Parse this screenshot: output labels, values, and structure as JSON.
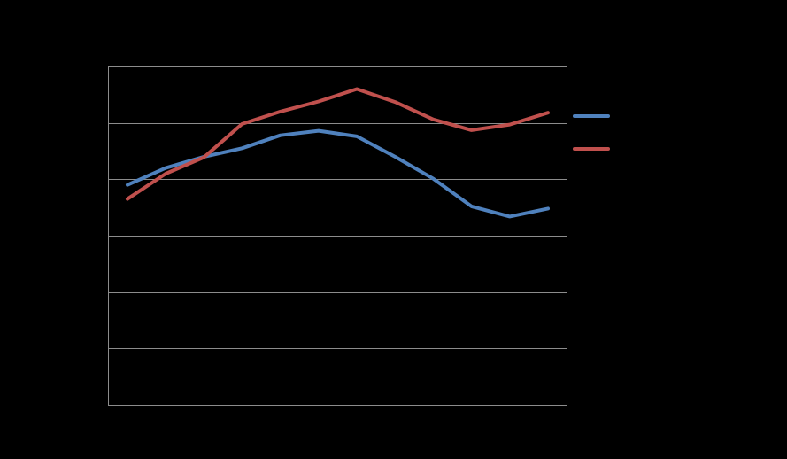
{
  "chart_data": {
    "type": "line",
    "title": "",
    "xlabel": "",
    "ylabel": "",
    "x": [
      1,
      2,
      3,
      4,
      5,
      6,
      7,
      8,
      9,
      10,
      11,
      12
    ],
    "ylim": [
      0,
      6
    ],
    "grid": true,
    "legend": "right",
    "series": [
      {
        "color": "#4f81bd",
        "values": [
          3.9,
          4.2,
          4.4,
          4.55,
          4.78,
          4.86,
          4.76,
          4.4,
          4.01,
          3.52,
          3.34,
          3.48
        ]
      },
      {
        "color": "#c0504d",
        "values": [
          3.65,
          4.1,
          4.39,
          4.98,
          5.2,
          5.38,
          5.6,
          5.37,
          5.06,
          4.87,
          4.97,
          5.18
        ]
      }
    ]
  }
}
